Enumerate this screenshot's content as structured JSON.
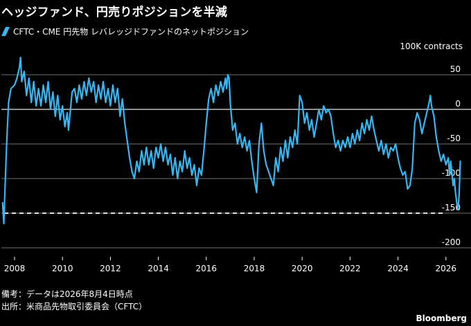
{
  "title": "ヘッジファンド、円売りポジションを半減",
  "legend": "CFTC・CME 円先物 レバレッジドファンドのネットポジション",
  "unit_label": "100K contracts",
  "footnote_1": "備考：データは2026年8月4日時点",
  "footnote_2": "出所：米商品先物取引委員会（CFTC）",
  "brand": "Bloomberg",
  "colors": {
    "line": "#35B7F2",
    "background": "#000000",
    "grid": "#FFFFFF",
    "reference": "#FFFFFF"
  },
  "chart_data": {
    "type": "line",
    "xlabel": "",
    "ylabel": "",
    "xlim": [
      2007.45,
      2026.7
    ],
    "ylim": [
      -200,
      75
    ],
    "x_ticks": [
      "2008",
      "2010",
      "2012",
      "2014",
      "2016",
      "2018",
      "2020",
      "2022",
      "2024",
      "2026"
    ],
    "y_ticks": [
      "50",
      "0",
      "-50",
      "-100",
      "-150",
      "-200"
    ],
    "reference_line": {
      "y": -150,
      "style": "dashed"
    },
    "series": [
      {
        "points": [
          [
            2007.5,
            -135
          ],
          [
            2007.55,
            -165
          ],
          [
            2007.6,
            -115
          ],
          [
            2007.68,
            -40
          ],
          [
            2007.75,
            10
          ],
          [
            2007.85,
            30
          ],
          [
            2008.0,
            35
          ],
          [
            2008.1,
            45
          ],
          [
            2008.2,
            60
          ],
          [
            2008.25,
            75
          ],
          [
            2008.3,
            40
          ],
          [
            2008.4,
            55
          ],
          [
            2008.5,
            20
          ],
          [
            2008.6,
            45
          ],
          [
            2008.7,
            10
          ],
          [
            2008.8,
            40
          ],
          [
            2008.9,
            5
          ],
          [
            2009.0,
            30
          ],
          [
            2009.1,
            5
          ],
          [
            2009.2,
            35
          ],
          [
            2009.3,
            10
          ],
          [
            2009.4,
            40
          ],
          [
            2009.5,
            0
          ],
          [
            2009.6,
            25
          ],
          [
            2009.7,
            -10
          ],
          [
            2009.8,
            20
          ],
          [
            2009.9,
            -15
          ],
          [
            2010.0,
            5
          ],
          [
            2010.1,
            -25
          ],
          [
            2010.2,
            -5
          ],
          [
            2010.25,
            -30
          ],
          [
            2010.4,
            25
          ],
          [
            2010.5,
            30
          ],
          [
            2010.6,
            10
          ],
          [
            2010.7,
            35
          ],
          [
            2010.8,
            15
          ],
          [
            2010.9,
            40
          ],
          [
            2011.0,
            20
          ],
          [
            2011.1,
            45
          ],
          [
            2011.2,
            25
          ],
          [
            2011.3,
            40
          ],
          [
            2011.4,
            10
          ],
          [
            2011.5,
            35
          ],
          [
            2011.6,
            15
          ],
          [
            2011.7,
            40
          ],
          [
            2011.8,
            10
          ],
          [
            2011.9,
            30
          ],
          [
            2012.0,
            5
          ],
          [
            2012.1,
            35
          ],
          [
            2012.2,
            10
          ],
          [
            2012.3,
            30
          ],
          [
            2012.4,
            -10
          ],
          [
            2012.5,
            15
          ],
          [
            2012.6,
            -20
          ],
          [
            2012.7,
            -45
          ],
          [
            2012.8,
            -70
          ],
          [
            2012.9,
            -90
          ],
          [
            2013.0,
            -100
          ],
          [
            2013.1,
            -75
          ],
          [
            2013.2,
            -90
          ],
          [
            2013.3,
            -60
          ],
          [
            2013.4,
            -80
          ],
          [
            2013.5,
            -55
          ],
          [
            2013.6,
            -80
          ],
          [
            2013.7,
            -60
          ],
          [
            2013.8,
            -85
          ],
          [
            2013.9,
            -55
          ],
          [
            2014.0,
            -70
          ],
          [
            2014.1,
            -50
          ],
          [
            2014.2,
            -75
          ],
          [
            2014.3,
            -55
          ],
          [
            2014.4,
            -80
          ],
          [
            2014.5,
            -65
          ],
          [
            2014.6,
            -95
          ],
          [
            2014.7,
            -70
          ],
          [
            2014.8,
            -100
          ],
          [
            2014.9,
            -75
          ],
          [
            2015.0,
            -90
          ],
          [
            2015.1,
            -60
          ],
          [
            2015.2,
            -85
          ],
          [
            2015.3,
            -70
          ],
          [
            2015.4,
            -95
          ],
          [
            2015.5,
            -80
          ],
          [
            2015.6,
            -110
          ],
          [
            2015.7,
            -85
          ],
          [
            2015.8,
            -95
          ],
          [
            2015.9,
            -60
          ],
          [
            2016.0,
            -20
          ],
          [
            2016.1,
            15
          ],
          [
            2016.2,
            30
          ],
          [
            2016.3,
            10
          ],
          [
            2016.4,
            35
          ],
          [
            2016.5,
            20
          ],
          [
            2016.6,
            40
          ],
          [
            2016.7,
            25
          ],
          [
            2016.8,
            45
          ],
          [
            2016.85,
            30
          ],
          [
            2016.9,
            50
          ],
          [
            2016.95,
            45
          ],
          [
            2017.0,
            10
          ],
          [
            2017.1,
            -30
          ],
          [
            2017.2,
            -20
          ],
          [
            2017.3,
            -50
          ],
          [
            2017.4,
            -35
          ],
          [
            2017.5,
            -55
          ],
          [
            2017.6,
            -40
          ],
          [
            2017.7,
            -60
          ],
          [
            2017.8,
            -45
          ],
          [
            2017.9,
            -75
          ],
          [
            2018.0,
            -100
          ],
          [
            2018.1,
            -120
          ],
          [
            2018.2,
            -50
          ],
          [
            2018.3,
            -20
          ],
          [
            2018.4,
            -60
          ],
          [
            2018.5,
            -80
          ],
          [
            2018.6,
            -90
          ],
          [
            2018.7,
            -100
          ],
          [
            2018.8,
            -110
          ],
          [
            2018.9,
            -70
          ],
          [
            2019.0,
            -90
          ],
          [
            2019.1,
            -55
          ],
          [
            2019.2,
            -75
          ],
          [
            2019.3,
            -45
          ],
          [
            2019.4,
            -70
          ],
          [
            2019.5,
            -40
          ],
          [
            2019.6,
            -55
          ],
          [
            2019.7,
            -30
          ],
          [
            2019.8,
            -50
          ],
          [
            2019.9,
            20
          ],
          [
            2020.0,
            10
          ],
          [
            2020.1,
            -20
          ],
          [
            2020.2,
            -5
          ],
          [
            2020.3,
            -30
          ],
          [
            2020.4,
            -15
          ],
          [
            2020.5,
            -40
          ],
          [
            2020.6,
            -20
          ],
          [
            2020.7,
            0
          ],
          [
            2020.8,
            -15
          ],
          [
            2020.9,
            5
          ],
          [
            2021.0,
            -5
          ],
          [
            2021.1,
            0
          ],
          [
            2021.2,
            -10
          ],
          [
            2021.3,
            -35
          ],
          [
            2021.4,
            -55
          ],
          [
            2021.5,
            -45
          ],
          [
            2021.6,
            -60
          ],
          [
            2021.7,
            -45
          ],
          [
            2021.8,
            -55
          ],
          [
            2021.9,
            -40
          ],
          [
            2022.0,
            -55
          ],
          [
            2022.1,
            -35
          ],
          [
            2022.2,
            -50
          ],
          [
            2022.3,
            -30
          ],
          [
            2022.4,
            -45
          ],
          [
            2022.5,
            -20
          ],
          [
            2022.6,
            -35
          ],
          [
            2022.7,
            -15
          ],
          [
            2022.8,
            -30
          ],
          [
            2022.9,
            -10
          ],
          [
            2023.0,
            -30
          ],
          [
            2023.1,
            -45
          ],
          [
            2023.2,
            -60
          ],
          [
            2023.3,
            -45
          ],
          [
            2023.4,
            -65
          ],
          [
            2023.5,
            -50
          ],
          [
            2023.6,
            -70
          ],
          [
            2023.7,
            -55
          ],
          [
            2023.8,
            -60
          ],
          [
            2023.9,
            -50
          ],
          [
            2024.0,
            -70
          ],
          [
            2024.1,
            -85
          ],
          [
            2024.2,
            -95
          ],
          [
            2024.3,
            -90
          ],
          [
            2024.4,
            -115
          ],
          [
            2024.5,
            -110
          ],
          [
            2024.6,
            -85
          ],
          [
            2024.7,
            -20
          ],
          [
            2024.8,
            -5
          ],
          [
            2024.9,
            -15
          ],
          [
            2025.0,
            -35
          ],
          [
            2025.1,
            -20
          ],
          [
            2025.2,
            -5
          ],
          [
            2025.3,
            10
          ],
          [
            2025.35,
            20
          ],
          [
            2025.4,
            5
          ],
          [
            2025.5,
            -10
          ],
          [
            2025.6,
            -40
          ],
          [
            2025.7,
            -60
          ],
          [
            2025.8,
            -75
          ],
          [
            2025.9,
            -65
          ],
          [
            2026.0,
            -80
          ],
          [
            2026.1,
            -70
          ],
          [
            2026.15,
            -95
          ],
          [
            2026.2,
            -75
          ],
          [
            2026.3,
            -110
          ],
          [
            2026.35,
            -100
          ],
          [
            2026.4,
            -120
          ],
          [
            2026.45,
            -135
          ],
          [
            2026.5,
            -145
          ],
          [
            2026.55,
            -125
          ],
          [
            2026.6,
            -75
          ]
        ]
      }
    ]
  }
}
